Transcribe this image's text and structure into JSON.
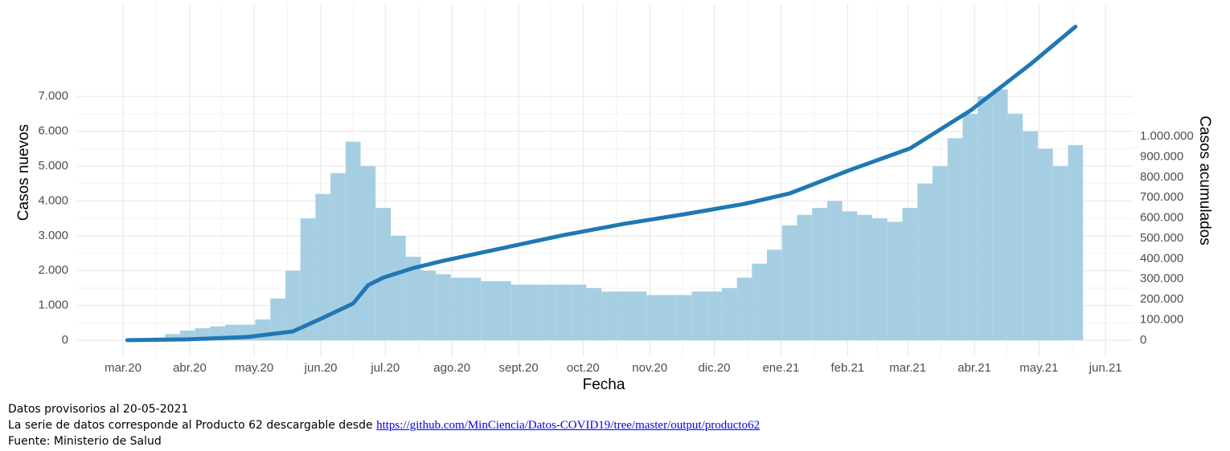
{
  "chart_data": {
    "type": "bar-line",
    "xlabel": "Fecha",
    "ylabel": "Casos nuevos",
    "y2label": "Casos acumulados",
    "xlim": [
      -21.7,
      470
    ],
    "xticks": [
      {
        "value": 0,
        "label": "mar.20"
      },
      {
        "value": 31,
        "label": "abr.20"
      },
      {
        "value": 61,
        "label": "may.20"
      },
      {
        "value": 92,
        "label": "jun.20"
      },
      {
        "value": 122,
        "label": "jul.20"
      },
      {
        "value": 153,
        "label": "ago.20"
      },
      {
        "value": 184,
        "label": "sept.20"
      },
      {
        "value": 214,
        "label": "oct.20"
      },
      {
        "value": 245,
        "label": "nov.20"
      },
      {
        "value": 275,
        "label": "dic.20"
      },
      {
        "value": 306,
        "label": "ene.21"
      },
      {
        "value": 337,
        "label": "feb.21"
      },
      {
        "value": 365,
        "label": "mar.21"
      },
      {
        "value": 396,
        "label": "abr.21"
      },
      {
        "value": 426,
        "label": "may.21"
      },
      {
        "value": 457,
        "label": "jun.21"
      }
    ],
    "ylim": [
      -480,
      9650
    ],
    "yticks": [
      0,
      {
        "value": 1000,
        "label": "1.000"
      },
      {
        "value": 2000,
        "label": "2.000"
      },
      {
        "value": 3000,
        "label": "3.000"
      },
      {
        "value": 4000,
        "label": "4.000"
      },
      {
        "value": 5000,
        "label": "5.000"
      },
      {
        "value": 6000,
        "label": "6.000"
      },
      {
        "value": 7000,
        "label": "7.000"
      }
    ],
    "y2lim": [
      -83000,
      1650000
    ],
    "y2ticks": [
      0,
      {
        "value": 100000,
        "label": "100.000"
      },
      {
        "value": 200000,
        "label": "200.000"
      },
      {
        "value": 300000,
        "label": "300.000"
      },
      {
        "value": 400000,
        "label": "400.000"
      },
      {
        "value": 500000,
        "label": "500.000"
      },
      {
        "value": 600000,
        "label": "600.000"
      },
      {
        "value": 700000,
        "label": "700.000"
      },
      {
        "value": 800000,
        "label": "800.000"
      },
      {
        "value": 900000,
        "label": "900.000"
      },
      {
        "value": 1000000,
        "label": "1.000.000"
      }
    ],
    "grid": true,
    "bars": {
      "color": "#a6cee3",
      "bar_width_days": 7,
      "x": [
        2,
        9,
        16,
        23,
        30,
        37,
        44,
        51,
        58,
        65,
        72,
        79,
        86,
        93,
        100,
        107,
        114,
        121,
        128,
        135,
        142,
        149,
        156,
        163,
        170,
        177,
        184,
        191,
        198,
        205,
        212,
        219,
        226,
        233,
        240,
        247,
        254,
        261,
        268,
        275,
        282,
        289,
        296,
        303,
        310,
        317,
        324,
        331,
        338,
        345,
        352,
        359,
        366,
        373,
        380,
        387,
        394,
        401,
        408,
        415,
        422,
        429,
        436,
        443
      ],
      "values": [
        2,
        20,
        80,
        180,
        280,
        350,
        400,
        450,
        450,
        600,
        1200,
        2000,
        3500,
        4200,
        4800,
        5700,
        5000,
        3800,
        3000,
        2400,
        2000,
        1900,
        1800,
        1800,
        1700,
        1700,
        1600,
        1600,
        1600,
        1600,
        1600,
        1500,
        1400,
        1400,
        1400,
        1300,
        1300,
        1300,
        1400,
        1400,
        1500,
        1800,
        2200,
        2600,
        3300,
        3600,
        3800,
        4000,
        3700,
        3600,
        3500,
        3400,
        3800,
        4500,
        5000,
        5800,
        6500,
        7000,
        7200,
        6500,
        6000,
        5500,
        5000,
        5600
      ]
    },
    "line": {
      "color": "#1f78b4",
      "axis": "y2",
      "x": [
        2,
        30,
        58,
        79,
        93,
        107,
        114,
        121,
        135,
        149,
        177,
        205,
        233,
        261,
        289,
        310,
        338,
        366,
        394,
        422,
        443
      ],
      "values": [
        0,
        4000,
        16000,
        43000,
        110000,
        180000,
        270000,
        307000,
        354000,
        390000,
        453000,
        516000,
        571000,
        618000,
        669000,
        720000,
        835000,
        941000,
        1126000,
        1354000,
        1539000
      ]
    }
  },
  "notes": {
    "line1": "Datos provisorios al 20-05-2021",
    "line2": "La serie de datos corresponde al Producto 62 descargable desde",
    "link": "https://github.com/MinCiencia/Datos-COVID19/tree/master/output/producto62",
    "line3": "Fuente: Ministerio de Salud"
  }
}
